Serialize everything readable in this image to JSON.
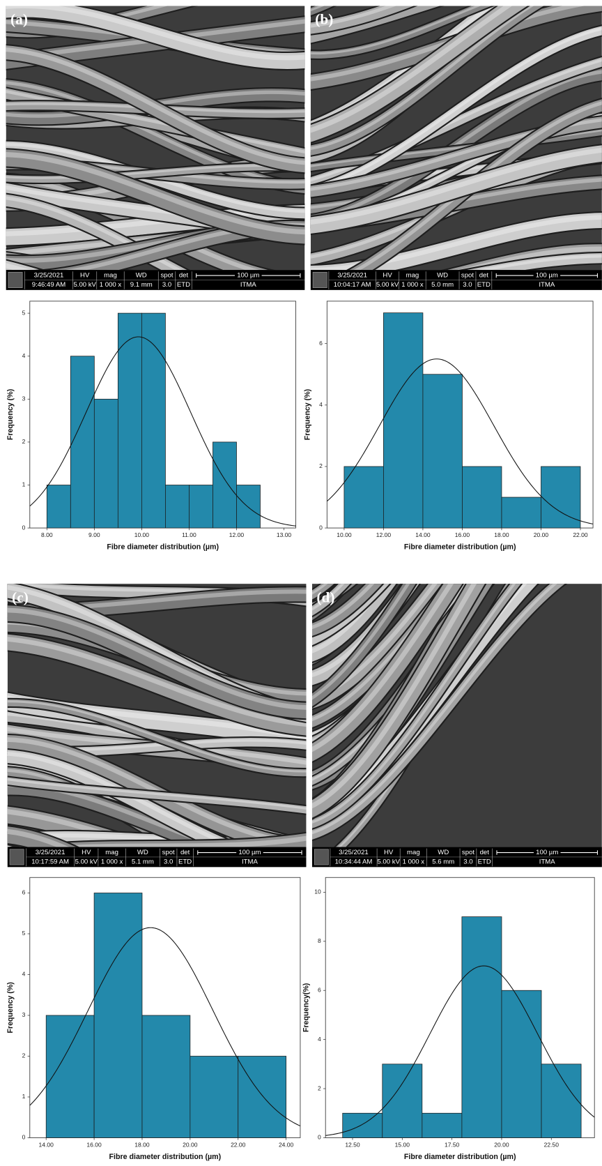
{
  "panels": [
    {
      "label": "(a)",
      "date": "3/25/2021",
      "time": "9:46:49 AM",
      "hv": "5.00 kV",
      "mag": "1 000 x",
      "wd": "9.1 mm",
      "spot": "3.0",
      "det": "ETD",
      "scale": "100 µm",
      "org": "ITMA"
    },
    {
      "label": "(b)",
      "date": "3/25/2021",
      "time": "10:04:17 AM",
      "hv": "5.00 kV",
      "mag": "1 000 x",
      "wd": "5.0 mm",
      "spot": "3.0",
      "det": "ETD",
      "scale": "100 µm",
      "org": "ITMA"
    },
    {
      "label": "(c)",
      "date": "3/25/2021",
      "time": "10:17:59 AM",
      "hv": "5.00 kV",
      "mag": "1 000 x",
      "wd": "5.1 mm",
      "spot": "3.0",
      "det": "ETD",
      "scale": "100 µm",
      "org": "ITMA"
    },
    {
      "label": "(d)",
      "date": "3/25/2021",
      "time": "10:34:44 AM",
      "hv": "5.00 kV",
      "mag": "1 000 x",
      "wd": "5.6 mm",
      "spot": "3.0",
      "det": "ETD",
      "scale": "100 µm",
      "org": "ITMA"
    }
  ],
  "info_headers": [
    "HV",
    "mag",
    "WD",
    "spot",
    "det"
  ],
  "chart_data": [
    {
      "type": "histogram",
      "x_label": "Fibre diameter distribution (µm)",
      "y_label": "Frequency (%)",
      "color": "#2389ab",
      "bins": [
        8,
        8.5,
        9,
        9.5,
        10,
        10.5,
        11,
        11.5,
        12,
        12.5
      ],
      "values": [
        1,
        4,
        3,
        5,
        5,
        1,
        1,
        2,
        1
      ],
      "curve": {
        "mean": 9.93,
        "sd": 1.1,
        "peak": 4.45
      },
      "xlim": [
        7.64,
        13.25
      ],
      "ylim": [
        0,
        5.28
      ],
      "xticks": [
        {
          "value": 8,
          "label": "8.00"
        },
        {
          "value": 9,
          "label": "9.00"
        },
        {
          "value": 10,
          "label": "10.00"
        },
        {
          "value": 11,
          "label": "11.00"
        },
        {
          "value": 12,
          "label": "12.00"
        },
        {
          "value": 13,
          "label": "13.00"
        }
      ],
      "yticks": [
        0,
        1,
        2,
        3,
        4,
        5
      ]
    },
    {
      "type": "histogram",
      "x_label": "Fibre diameter distribution (µm)",
      "y_label": "Frequency (%)",
      "color": "#2389ab",
      "bins": [
        10,
        12,
        14,
        16,
        18,
        20,
        22
      ],
      "values": [
        2,
        7,
        5,
        2,
        1,
        2
      ],
      "curve": {
        "mean": 14.7,
        "sd": 2.9,
        "peak": 5.5
      },
      "xlim": [
        9.13,
        22.64
      ],
      "ylim": [
        0,
        7.38
      ],
      "xticks": [
        {
          "value": 10,
          "label": "10.00"
        },
        {
          "value": 12,
          "label": "12.00"
        },
        {
          "value": 14,
          "label": "14.00"
        },
        {
          "value": 16,
          "label": "16.00"
        },
        {
          "value": 18,
          "label": "18.00"
        },
        {
          "value": 20,
          "label": "20.00"
        },
        {
          "value": 22,
          "label": "22.00"
        }
      ],
      "yticks": [
        0,
        2,
        4,
        6
      ]
    },
    {
      "type": "histogram",
      "x_label": "Fibre diameter distribution (µm)",
      "y_label": "Frequency (%)",
      "color": "#2389ab",
      "bins": [
        14,
        16,
        18,
        20,
        22,
        24
      ],
      "values": [
        3,
        6,
        3,
        2,
        2
      ],
      "curve": {
        "mean": 18.35,
        "sd": 2.6,
        "peak": 5.15
      },
      "xlim": [
        13.32,
        24.59
      ],
      "ylim": [
        0,
        6.38
      ],
      "xticks": [
        {
          "value": 14,
          "label": "14.00"
        },
        {
          "value": 16,
          "label": "16.00"
        },
        {
          "value": 18,
          "label": "18.00"
        },
        {
          "value": 20,
          "label": "20.00"
        },
        {
          "value": 22,
          "label": "22.00"
        },
        {
          "value": 24,
          "label": "24.00"
        }
      ],
      "yticks": [
        0,
        1,
        2,
        3,
        4,
        5,
        6
      ]
    },
    {
      "type": "histogram",
      "x_label": "Fibre diameter distribution (µm)",
      "y_label": "Frequency(%)",
      "color": "#2389ab",
      "bins": [
        12,
        14,
        16,
        18,
        20,
        22,
        24
      ],
      "values": [
        1,
        3,
        1,
        9,
        6,
        3
      ],
      "curve": {
        "mean": 19.1,
        "sd": 2.7,
        "peak": 7.0
      },
      "xlim": [
        11.14,
        24.67
      ],
      "ylim": [
        0,
        10.6
      ],
      "xticks": [
        {
          "value": 12.5,
          "label": "12.50"
        },
        {
          "value": 15,
          "label": "15.00"
        },
        {
          "value": 17.5,
          "label": "17.50"
        },
        {
          "value": 20,
          "label": "20.00"
        },
        {
          "value": 22.5,
          "label": "22.50"
        }
      ],
      "yticks": [
        0,
        2,
        4,
        6,
        8,
        10
      ]
    }
  ]
}
